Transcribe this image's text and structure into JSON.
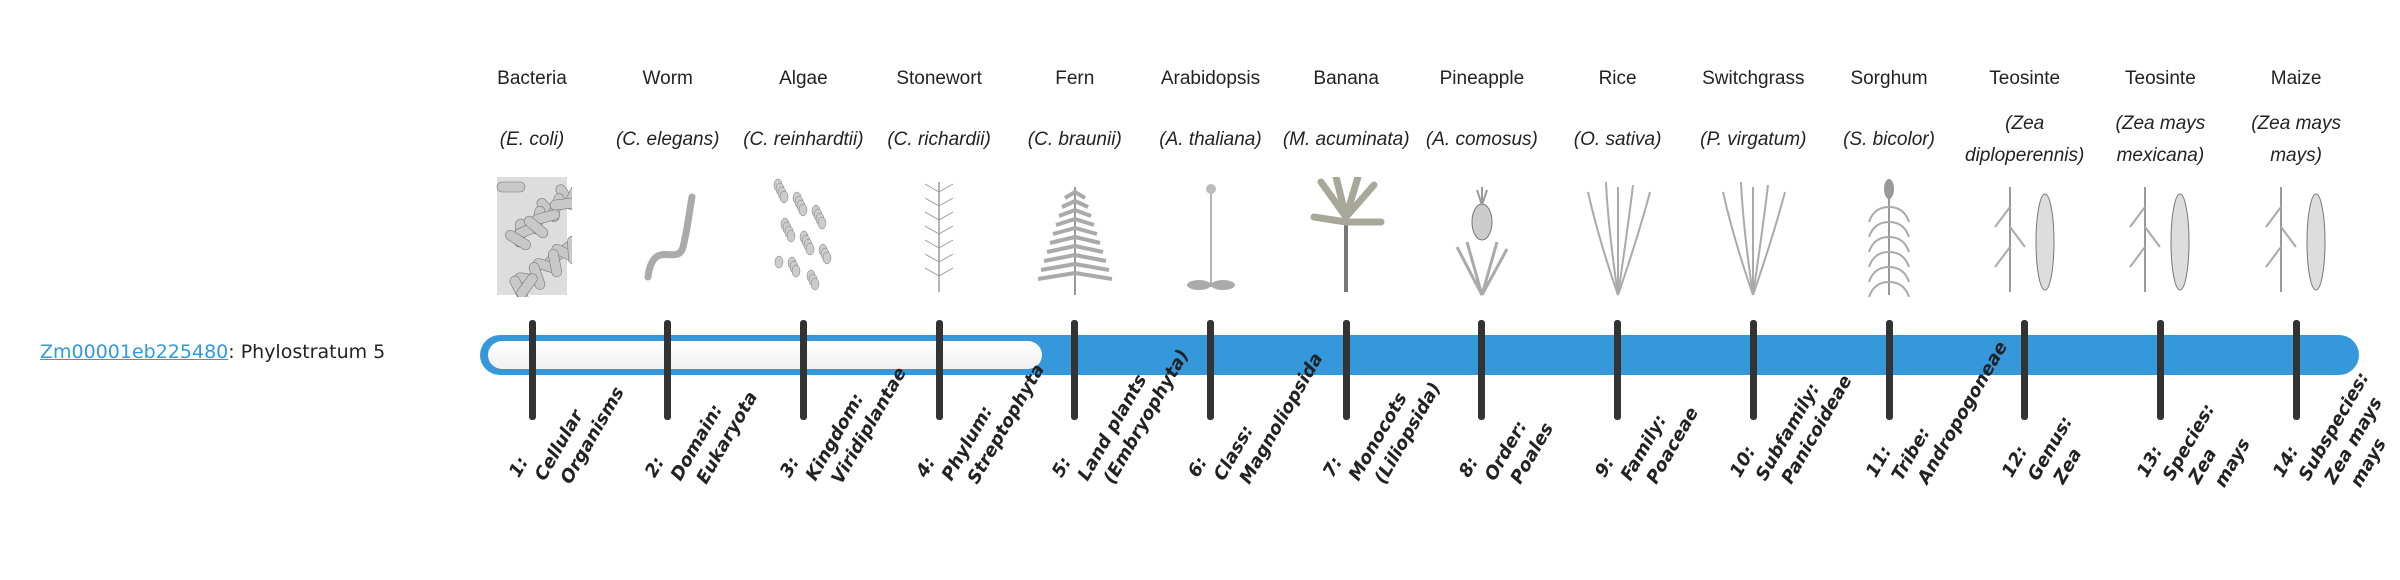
{
  "gene": {
    "id": "Zm00001eb225480",
    "suffix": ": Phylostratum 5"
  },
  "phylostratum": {
    "value": 5,
    "total": 14
  },
  "colors": {
    "accent": "#3598db",
    "tick": "#333333",
    "link": "#3498db"
  },
  "strata": [
    {
      "name": "Bacteria",
      "sci": "(E. coli)",
      "icon": "bacteria-icon",
      "label_lines": [
        "1:",
        "Cellular",
        "Organisms"
      ]
    },
    {
      "name": "Worm",
      "sci": "(C. elegans)",
      "icon": "worm-icon",
      "label_lines": [
        "2:",
        "Domain:",
        "Eukaryota"
      ]
    },
    {
      "name": "Algae",
      "sci": "(C. reinhardtii)",
      "icon": "algae-icon",
      "label_lines": [
        "3:",
        "Kingdom:",
        "Viridiplantae"
      ]
    },
    {
      "name": "Stonewort",
      "sci": "(C. richardii)",
      "icon": "stonewort-icon",
      "label_lines": [
        "4:",
        "Phylum:",
        "Streptophyta"
      ]
    },
    {
      "name": "Fern",
      "sci": "(C. braunii)",
      "icon": "fern-icon",
      "label_lines": [
        "5:",
        "Land plants",
        "(Embryophyta)"
      ]
    },
    {
      "name": "Arabidopsis",
      "sci": "(A. thaliana)",
      "icon": "arabidopsis-icon",
      "label_lines": [
        "6:",
        "Class:",
        "Magnoliopsida"
      ]
    },
    {
      "name": "Banana",
      "sci": "(M. acuminata)",
      "icon": "banana-icon",
      "label_lines": [
        "7:",
        "Monocots",
        "(Liliopsida)"
      ]
    },
    {
      "name": "Pineapple",
      "sci": "(A. comosus)",
      "icon": "pineapple-icon",
      "label_lines": [
        "8:",
        "Order:",
        "Poales"
      ]
    },
    {
      "name": "Rice",
      "sci": "(O. sativa)",
      "icon": "rice-icon",
      "label_lines": [
        "9:",
        "Family:",
        "Poaceae"
      ]
    },
    {
      "name": "Switchgrass",
      "sci": "(P. virgatum)",
      "icon": "switchgrass-icon",
      "label_lines": [
        "10:",
        "Subfamily:",
        "Panicoideae"
      ]
    },
    {
      "name": "Sorghum",
      "sci": "(S. bicolor)",
      "icon": "sorghum-icon",
      "label_lines": [
        "11:",
        "Tribe:",
        "Andropogoneae"
      ]
    },
    {
      "name": "Teosinte",
      "sci": "(Zea diploperennis)",
      "icon": "teosinte-icon",
      "label_lines": [
        "12:",
        "Genus:",
        "Zea"
      ]
    },
    {
      "name": "Teosinte",
      "sci": "(Zea mays mexicana)",
      "icon": "teosinte-icon",
      "label_lines": [
        "13:",
        "Species:",
        "Zea",
        "mays"
      ]
    },
    {
      "name": "Maize",
      "sci": "(Zea mays mays)",
      "icon": "maize-icon",
      "label_lines": [
        "14:",
        "Subspecies:",
        "Zea mays",
        "mays"
      ]
    }
  ]
}
